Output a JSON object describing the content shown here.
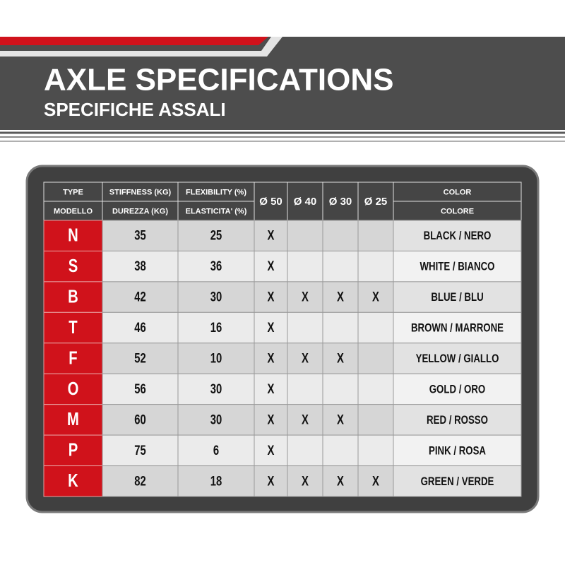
{
  "header": {
    "title": "AXLE SPECIFICATIONS",
    "subtitle": "SPECIFICHE ASSALI"
  },
  "table": {
    "columns": [
      {
        "top": "TYPE",
        "bottom": "MODELLO"
      },
      {
        "top": "STIFFNESS (KG)",
        "bottom": "DUREZZA (KG)"
      },
      {
        "top": "FLEXIBILITY (%)",
        "bottom": "ELASTICITA' (%)"
      },
      {
        "label": "Ø 50"
      },
      {
        "label": "Ø 40"
      },
      {
        "label": "Ø 30"
      },
      {
        "label": "Ø 25"
      },
      {
        "top": "COLOR",
        "bottom": "COLORE"
      }
    ],
    "rows": [
      [
        "N",
        35,
        25,
        "X",
        null,
        null,
        null,
        "BLACK / NERO"
      ],
      [
        "S",
        38,
        36,
        "X",
        null,
        null,
        null,
        "WHITE / BIANCO"
      ],
      [
        "B",
        42,
        30,
        "X",
        "X",
        "X",
        "X",
        "BLUE / BLU"
      ],
      [
        "T",
        46,
        16,
        "X",
        null,
        null,
        null,
        "BROWN / MARRONE"
      ],
      [
        "F",
        52,
        10,
        "X",
        "X",
        "X",
        null,
        "YELLOW / GIALLO"
      ],
      [
        "O",
        56,
        30,
        "X",
        null,
        null,
        null,
        "GOLD / ORO"
      ],
      [
        "M",
        60,
        30,
        "X",
        "X",
        "X",
        null,
        "RED / ROSSO"
      ],
      [
        "P",
        75,
        6,
        "X",
        null,
        null,
        null,
        "PINK / ROSA"
      ],
      [
        "K",
        82,
        18,
        "X",
        "X",
        "X",
        "X",
        "GREEN / VERDE"
      ]
    ]
  }
}
